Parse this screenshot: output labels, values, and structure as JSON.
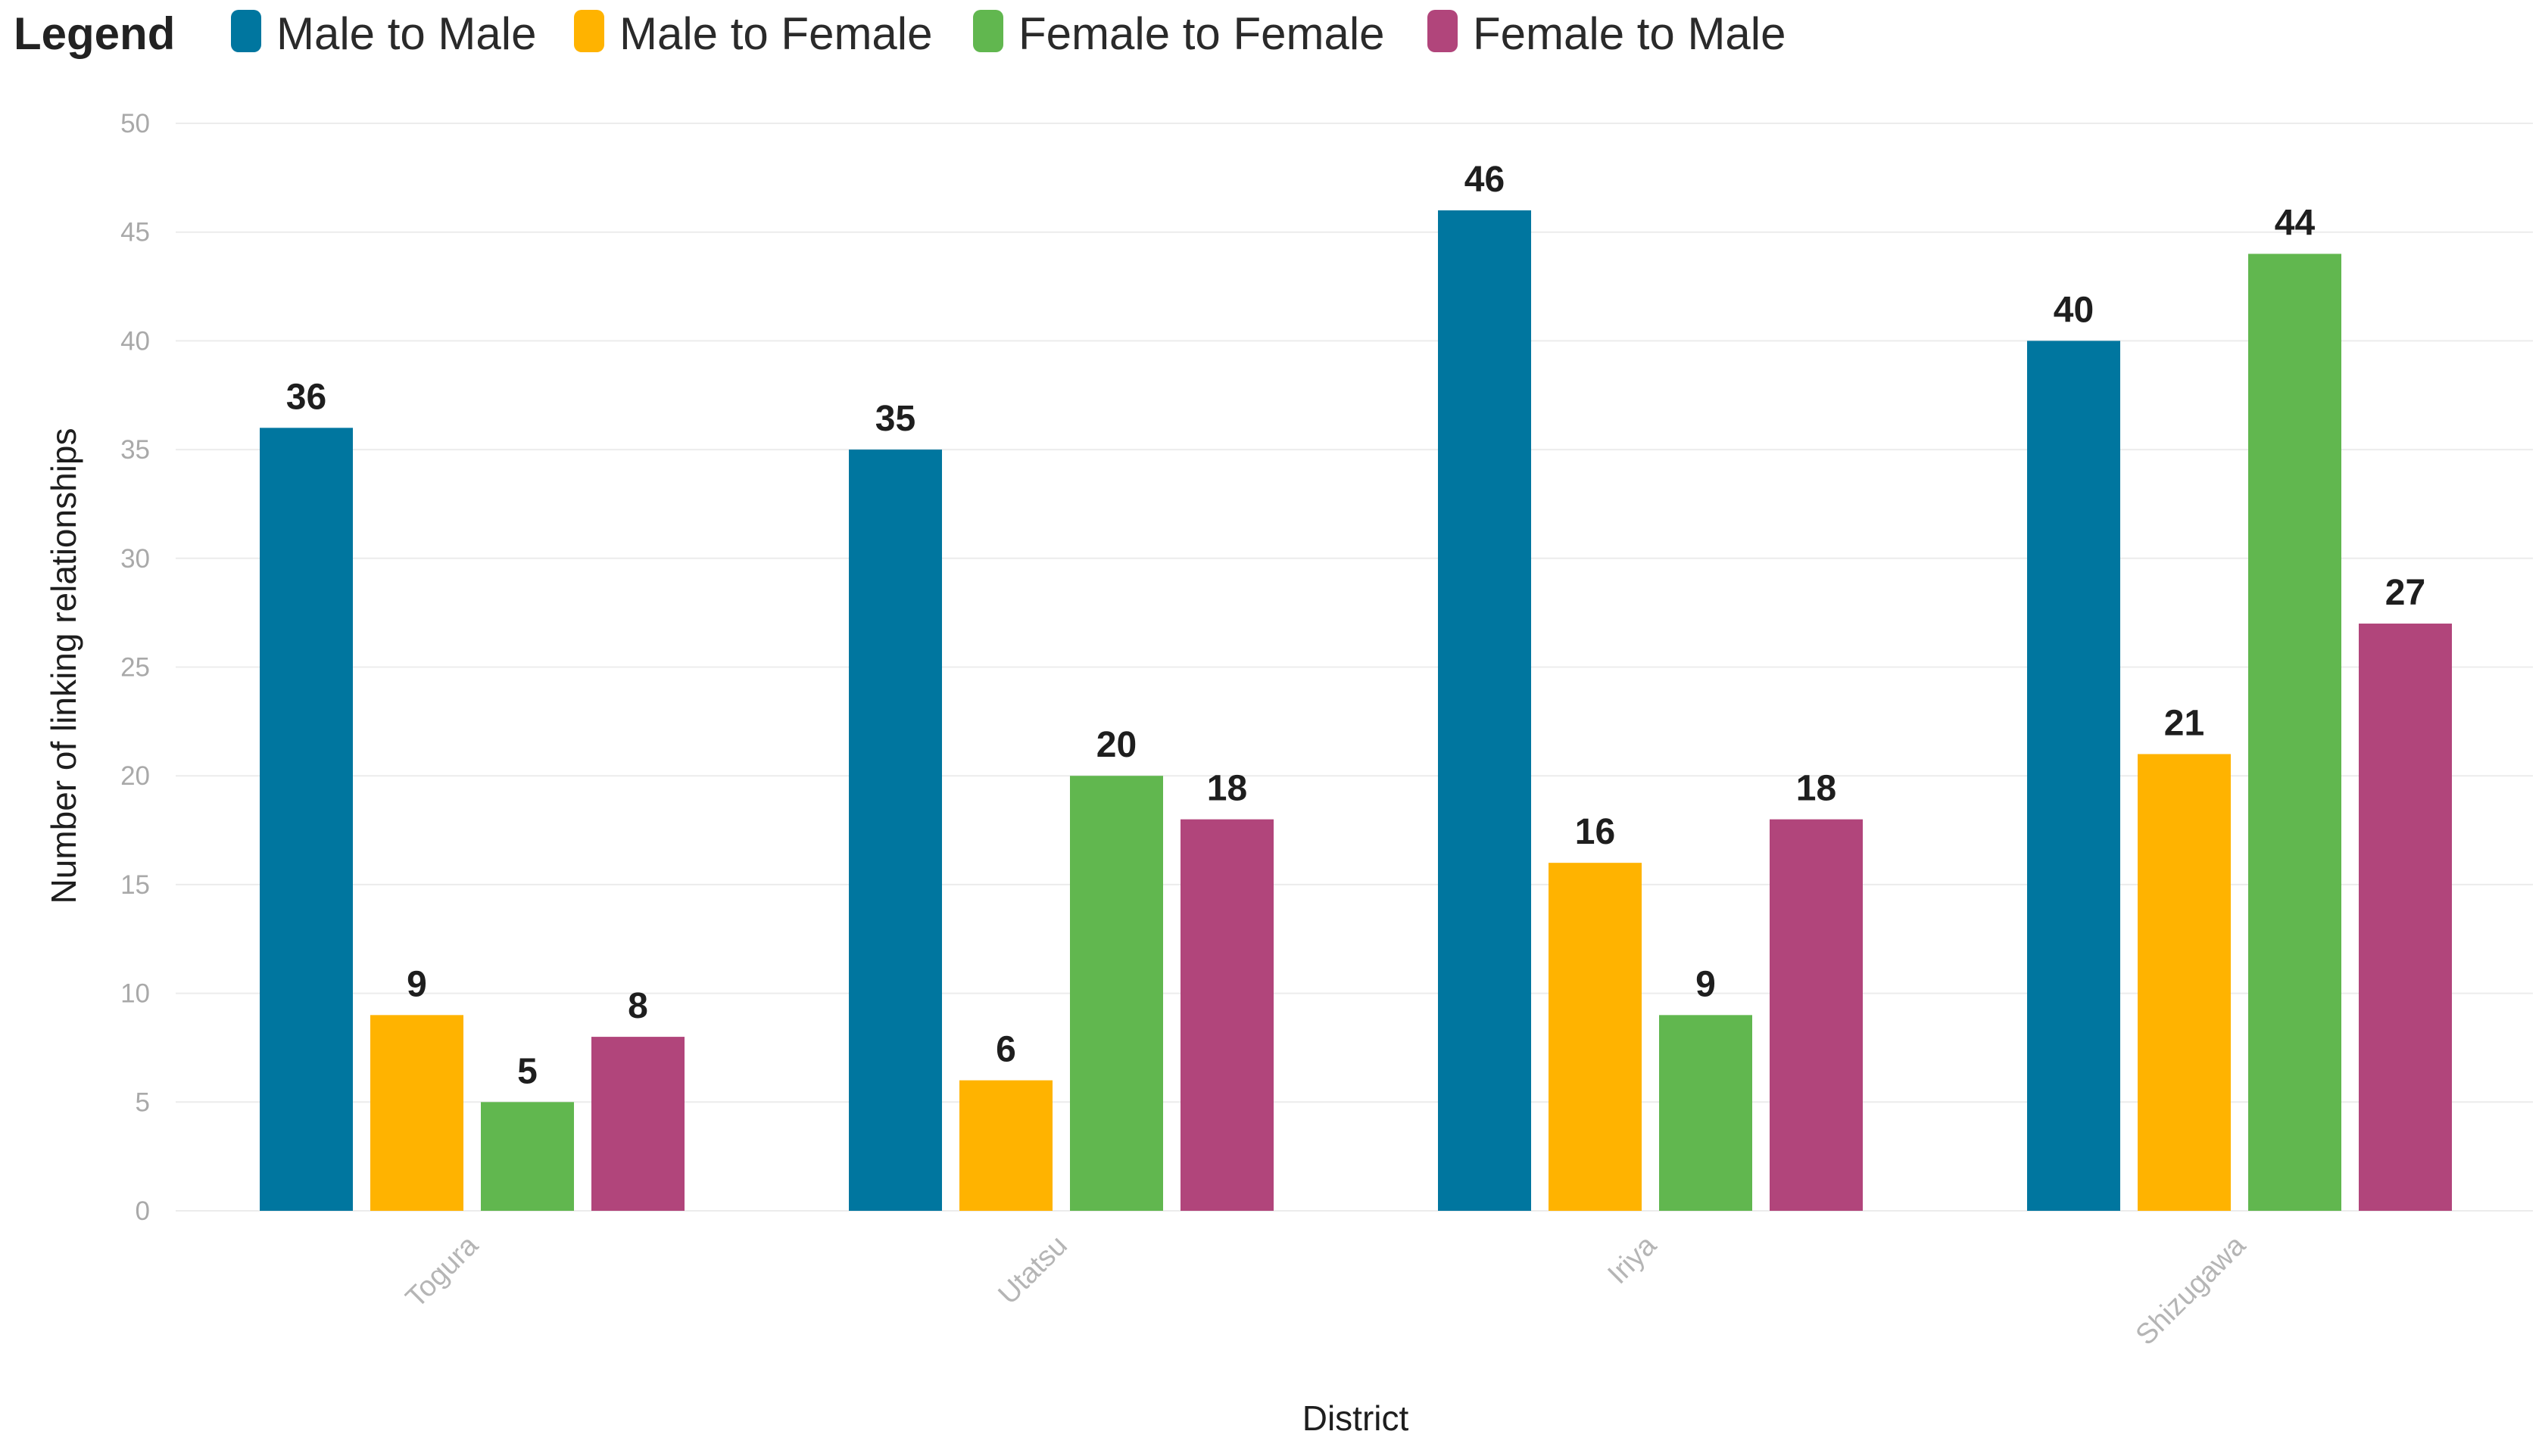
{
  "chart_data": {
    "type": "bar",
    "title": "",
    "legend_title": "Legend",
    "legend_position": "top-left",
    "categories": [
      "Togura",
      "Utatsu",
      "Iriya",
      "Shizugawa"
    ],
    "series": [
      {
        "name": "Male to Male",
        "color": "#00769f",
        "values": [
          36,
          35,
          46,
          40
        ]
      },
      {
        "name": "Male to Female",
        "color": "#ffb300",
        "values": [
          9,
          6,
          16,
          21
        ]
      },
      {
        "name": "Female to Female",
        "color": "#61b74f",
        "values": [
          5,
          20,
          9,
          44
        ]
      },
      {
        "name": "Female to Male",
        "color": "#b1457b",
        "values": [
          8,
          18,
          18,
          27
        ]
      }
    ],
    "xlabel": "District",
    "ylabel": "Number of linking relationships",
    "ylim": [
      0,
      50
    ],
    "yticks": [
      0,
      5,
      10,
      15,
      20,
      25,
      30,
      35,
      40,
      45,
      50
    ],
    "grid": true
  }
}
